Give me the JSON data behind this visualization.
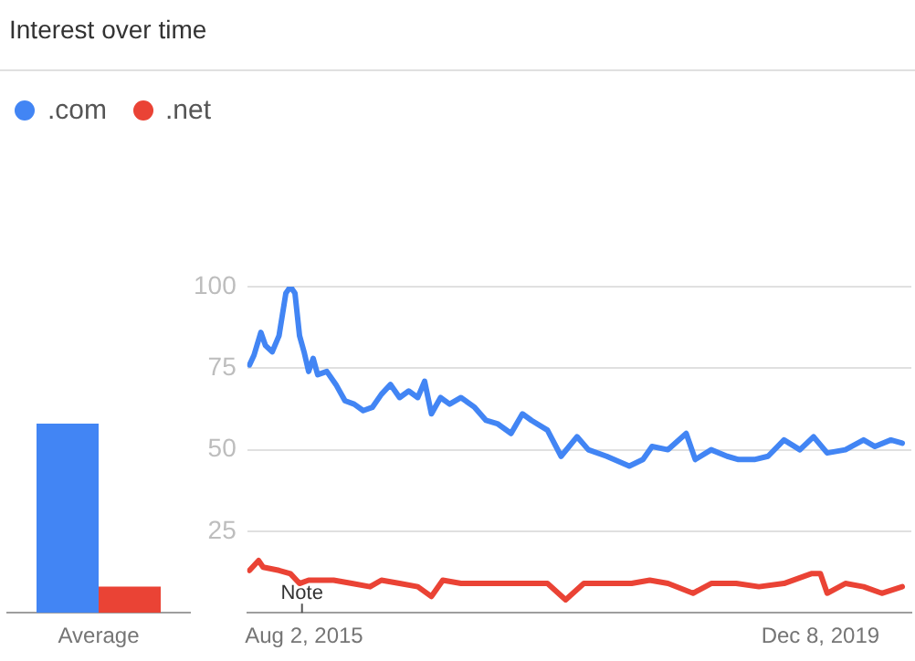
{
  "chart_data": [
    {
      "type": "bar",
      "categories": [
        "Average"
      ],
      "series": [
        {
          "color": "#4285f4",
          "values": [
            58
          ]
        },
        {
          "color": "#ea4335",
          "values": [
            8
          ]
        }
      ],
      "ylim": [
        0,
        100
      ],
      "tick_labels": "x",
      "grid": false,
      "legend": false,
      "title": "Interest over time"
    },
    {
      "type": "line",
      "legend": "top left",
      "grid": "y",
      "marker": "none",
      "line_style": "solid",
      "xlim": [
        "2015-02-08",
        "2020-09-13"
      ],
      "xticks": [
        {
          "value": "2015-08-02",
          "label": "Aug 2, 2015"
        },
        {
          "value": "2019-12-08",
          "label": "Dec 8, 2019"
        }
      ],
      "ylim": [
        0,
        100
      ],
      "yticks": [
        25,
        50,
        75,
        100
      ],
      "annotations": [
        "Note"
      ],
      "series": [
        {
          "name": ".com",
          "color": "#4285f4",
          "x": [
            "2015-02-15",
            "2015-03-01",
            "2015-03-22",
            "2015-04-05",
            "2015-04-26",
            "2015-05-17",
            "2015-06-07",
            "2015-06-21",
            "2015-07-05",
            "2015-07-19",
            "2015-08-02",
            "2015-08-16",
            "2015-08-30",
            "2015-09-13",
            "2015-10-11",
            "2015-11-08",
            "2015-12-06",
            "2016-01-03",
            "2016-01-31",
            "2016-02-28",
            "2016-03-27",
            "2016-04-24",
            "2016-05-22",
            "2016-06-19",
            "2016-07-17",
            "2016-08-07",
            "2016-08-28",
            "2016-09-25",
            "2016-10-23",
            "2016-11-27",
            "2017-01-08",
            "2017-02-12",
            "2017-03-19",
            "2017-04-30",
            "2017-06-04",
            "2017-07-02",
            "2017-08-20",
            "2017-10-01",
            "2017-11-19",
            "2017-12-24",
            "2018-02-18",
            "2018-04-29",
            "2018-06-10",
            "2018-07-08",
            "2018-08-26",
            "2018-10-21",
            "2018-11-18",
            "2019-01-06",
            "2019-02-24",
            "2019-03-31",
            "2019-05-19",
            "2019-06-30",
            "2019-08-18",
            "2019-10-06",
            "2019-11-17",
            "2019-12-29",
            "2020-02-23",
            "2020-04-19",
            "2020-05-24",
            "2020-07-12",
            "2020-08-16"
          ],
          "values": [
            76,
            79,
            86,
            82,
            80,
            85,
            98,
            100,
            98,
            85,
            80,
            74,
            78,
            73,
            74,
            70,
            65,
            64,
            62,
            63,
            67,
            70,
            66,
            68,
            66,
            71,
            61,
            66,
            64,
            66,
            63,
            59,
            58,
            55,
            61,
            59,
            56,
            48,
            54,
            50,
            48,
            45,
            47,
            51,
            50,
            55,
            47,
            50,
            48,
            47,
            47,
            48,
            53,
            50,
            54,
            49,
            50,
            53,
            51,
            53,
            52
          ]
        },
        {
          "name": ".net",
          "color": "#ea4335",
          "x": [
            "2015-02-15",
            "2015-03-15",
            "2015-03-29",
            "2015-05-17",
            "2015-06-21",
            "2015-07-19",
            "2015-08-16",
            "2015-11-01",
            "2015-12-27",
            "2016-02-21",
            "2016-03-27",
            "2016-05-22",
            "2016-07-17",
            "2016-08-28",
            "2016-10-02",
            "2016-11-27",
            "2017-01-22",
            "2017-03-19",
            "2017-05-14",
            "2017-08-20",
            "2017-10-15",
            "2017-12-10",
            "2018-02-18",
            "2018-05-06",
            "2018-07-01",
            "2018-08-26",
            "2018-11-11",
            "2019-01-06",
            "2019-03-24",
            "2019-06-02",
            "2019-08-18",
            "2019-11-10",
            "2019-12-08",
            "2019-12-29",
            "2020-02-23",
            "2020-04-19",
            "2020-06-14",
            "2020-08-16"
          ],
          "values": [
            13,
            16,
            14,
            13,
            12,
            9,
            10,
            10,
            9,
            8,
            10,
            9,
            8,
            5,
            10,
            9,
            9,
            9,
            9,
            9,
            4,
            9,
            9,
            9,
            10,
            9,
            6,
            9,
            9,
            8,
            9,
            12,
            12,
            6,
            9,
            8,
            6,
            8
          ]
        }
      ]
    }
  ]
}
